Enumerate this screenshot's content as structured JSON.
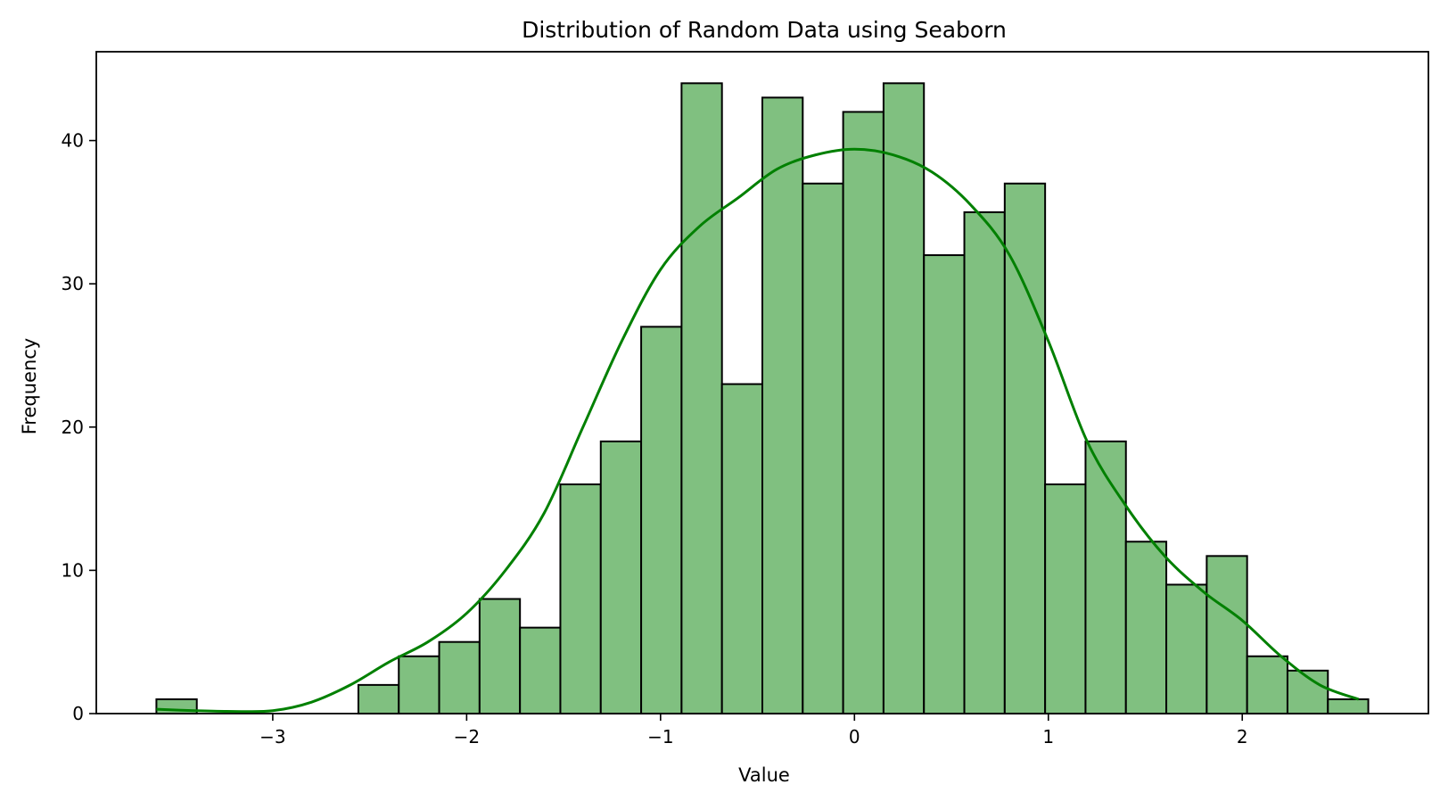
{
  "chart_data": {
    "type": "bar",
    "subtype": "histogram",
    "title": "Distribution of Random Data using Seaborn",
    "xlabel": "Value",
    "ylabel": "Frequency",
    "bin_edges": [
      -3.6,
      -3.3917,
      -3.1833,
      -2.975,
      -2.7667,
      -2.5583,
      -2.35,
      -2.1417,
      -1.9333,
      -1.725,
      -1.5167,
      -1.3083,
      -1.1,
      -0.8917,
      -0.6833,
      -0.475,
      -0.2667,
      -0.0583,
      0.15,
      0.3583,
      0.5667,
      0.775,
      0.9833,
      1.1917,
      1.4,
      1.6083,
      1.8167,
      2.025,
      2.2333,
      2.4417,
      2.65
    ],
    "counts": [
      1,
      0,
      0,
      0,
      0,
      2,
      4,
      5,
      8,
      6,
      16,
      19,
      27,
      44,
      23,
      43,
      37,
      42,
      44,
      32,
      35,
      37,
      16,
      19,
      12,
      9,
      11,
      4,
      3,
      1
    ],
    "kde": {
      "x": [
        -3.6,
        -3.4,
        -3.2,
        -3.0,
        -2.8,
        -2.6,
        -2.4,
        -2.2,
        -2.0,
        -1.8,
        -1.6,
        -1.4,
        -1.2,
        -1.0,
        -0.8,
        -0.6,
        -0.4,
        -0.2,
        0.0,
        0.2,
        0.4,
        0.6,
        0.8,
        1.0,
        1.2,
        1.4,
        1.6,
        1.8,
        2.0,
        2.2,
        2.4,
        2.6
      ],
      "y": [
        0.3,
        0.2,
        0.15,
        0.2,
        0.8,
        2.0,
        3.6,
        5.0,
        7.0,
        10.0,
        14.0,
        20.0,
        26.0,
        31.0,
        34.0,
        36.0,
        38.0,
        39.0,
        39.4,
        39.0,
        37.8,
        35.5,
        32.0,
        26.0,
        19.0,
        14.5,
        11.0,
        8.5,
        6.5,
        4.0,
        2.0,
        1.0
      ]
    },
    "xlim": [
      -3.91,
      2.96
    ],
    "ylim": [
      0,
      46.2
    ],
    "xticks": [
      -3,
      -2,
      -1,
      0,
      1,
      2
    ],
    "xtick_labels": [
      "−3",
      "−2",
      "−1",
      "0",
      "1",
      "2"
    ],
    "yticks": [
      0,
      10,
      20,
      30,
      40
    ],
    "ytick_labels": [
      "0",
      "10",
      "20",
      "30",
      "40"
    ],
    "grid": false,
    "colors": {
      "bar_fill": "#80c080",
      "bar_edge": "#000000",
      "kde_line": "#008000",
      "axis": "#000000"
    }
  }
}
